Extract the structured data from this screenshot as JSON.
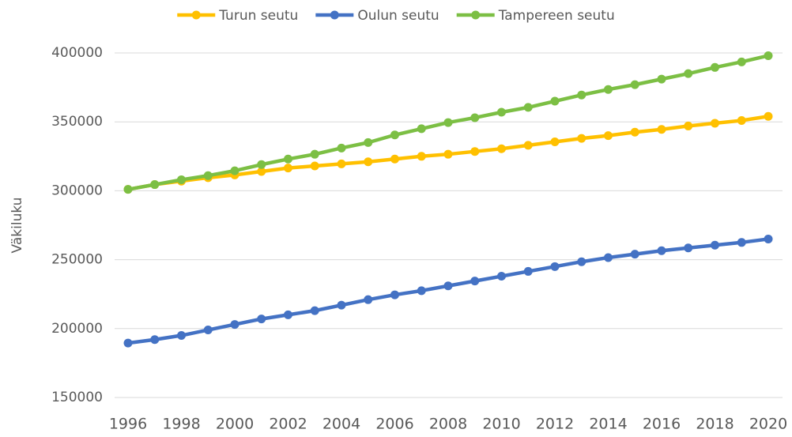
{
  "chart_data": {
    "type": "line",
    "y_label": "Väkiluku",
    "x": [
      1996,
      1997,
      1998,
      1999,
      2000,
      2001,
      2002,
      2003,
      2004,
      2005,
      2006,
      2007,
      2008,
      2009,
      2010,
      2011,
      2012,
      2013,
      2014,
      2015,
      2016,
      2017,
      2018,
      2019,
      2020
    ],
    "xlim": [
      1996,
      2020
    ],
    "xticks": [
      1996,
      1998,
      2000,
      2002,
      2004,
      2006,
      2008,
      2010,
      2012,
      2014,
      2016,
      2018,
      2020
    ],
    "ylim": [
      150000,
      400000
    ],
    "yticks": [
      150000,
      200000,
      250000,
      300000,
      350000,
      400000
    ],
    "grid": true,
    "legend": "top",
    "series": [
      {
        "name": "Turun seutu",
        "color": "#ffc000",
        "values": [
          301000,
          304500,
          307000,
          309500,
          311500,
          314000,
          316500,
          318000,
          319500,
          321000,
          323000,
          325000,
          326500,
          328500,
          330500,
          333000,
          335500,
          338000,
          340000,
          342500,
          344500,
          347000,
          349000,
          351000,
          354000
        ]
      },
      {
        "name": "Oulun seutu",
        "color": "#4472c4",
        "values": [
          189500,
          192000,
          195000,
          199000,
          203000,
          207000,
          210000,
          213000,
          217000,
          221000,
          224500,
          227500,
          231000,
          234500,
          238000,
          241500,
          245000,
          248500,
          251500,
          254000,
          256500,
          258500,
          260500,
          262500,
          265000
        ]
      },
      {
        "name": "Tampereen seutu",
        "color": "#7cbf44",
        "values": [
          301000,
          304500,
          308000,
          311000,
          314500,
          319000,
          323000,
          326500,
          331000,
          335000,
          340500,
          345000,
          349500,
          353000,
          357000,
          360500,
          365000,
          369500,
          373500,
          377000,
          381000,
          385000,
          389500,
          393500,
          398000
        ]
      }
    ]
  }
}
